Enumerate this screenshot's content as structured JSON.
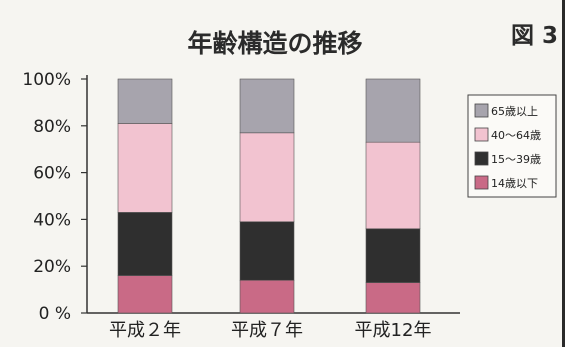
{
  "figure_label": "図 3",
  "chart_data": {
    "type": "bar",
    "stacked": true,
    "percent": true,
    "title": "年齢構造の推移",
    "categories": [
      "平成２年",
      "平成７年",
      "平成12年"
    ],
    "y_ticks": [
      "0 %",
      "20%",
      "40%",
      "60%",
      "80%",
      "100%"
    ],
    "ylim": [
      0,
      100
    ],
    "grid": false,
    "legend_position": "right",
    "series": [
      {
        "name": "14歳以下",
        "color": "#c96a86",
        "values": [
          16,
          14,
          13
        ]
      },
      {
        "name": "15～39歳",
        "color": "#2f2f2f",
        "values": [
          27,
          25,
          23
        ]
      },
      {
        "name": "40～64歳",
        "color": "#f2c3d0",
        "values": [
          38,
          38,
          37
        ]
      },
      {
        "name": "65歳以上",
        "color": "#a7a4ad",
        "values": [
          19,
          23,
          27
        ]
      }
    ]
  }
}
